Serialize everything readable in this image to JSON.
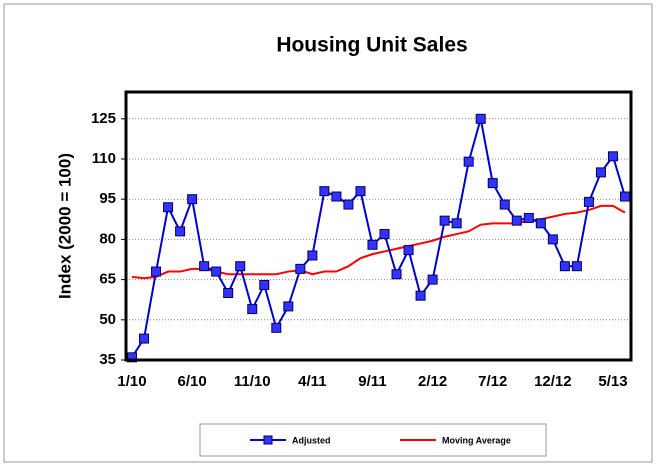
{
  "chart_data": {
    "type": "line",
    "title": "Housing Unit Sales",
    "ylabel": "Index (2000 = 100)",
    "categories": [
      "1/10",
      null,
      null,
      null,
      null,
      "6/10",
      null,
      null,
      null,
      null,
      "11/10",
      null,
      null,
      null,
      null,
      "4/11",
      null,
      null,
      null,
      null,
      "9/11",
      null,
      null,
      null,
      null,
      "2/12",
      null,
      null,
      null,
      null,
      "7/12",
      null,
      null,
      null,
      null,
      "12/12",
      null,
      null,
      null,
      null,
      "5/13",
      null
    ],
    "series": [
      {
        "name": "Adjusted",
        "color": "#0000cc",
        "marker_color": "#3333ff",
        "values": [
          36,
          43,
          68,
          92,
          83,
          95,
          70,
          68,
          60,
          70,
          54,
          63,
          47,
          55,
          69,
          74,
          98,
          96,
          93,
          98,
          78,
          82,
          67,
          76,
          59,
          65,
          87,
          86,
          109,
          125,
          101,
          93,
          87,
          88,
          86,
          80,
          70,
          70,
          94,
          105,
          111,
          96
        ]
      },
      {
        "name": "Moving Average",
        "color": "#ff0000",
        "values": [
          66,
          65.5,
          66,
          68,
          68,
          69,
          69,
          68,
          67,
          67,
          67,
          67,
          67,
          68,
          68.5,
          67,
          68,
          68,
          70,
          73,
          74.5,
          75.5,
          76.5,
          77.5,
          78.5,
          79.5,
          81,
          82,
          83,
          85.5,
          86,
          86,
          86,
          87,
          87.5,
          88.5,
          89.5,
          90,
          91,
          92.5,
          92.5,
          90
        ]
      }
    ],
    "ylim": [
      35,
      135
    ],
    "yticks": [
      35,
      50,
      65,
      80,
      95,
      110,
      125
    ],
    "grid": true
  }
}
